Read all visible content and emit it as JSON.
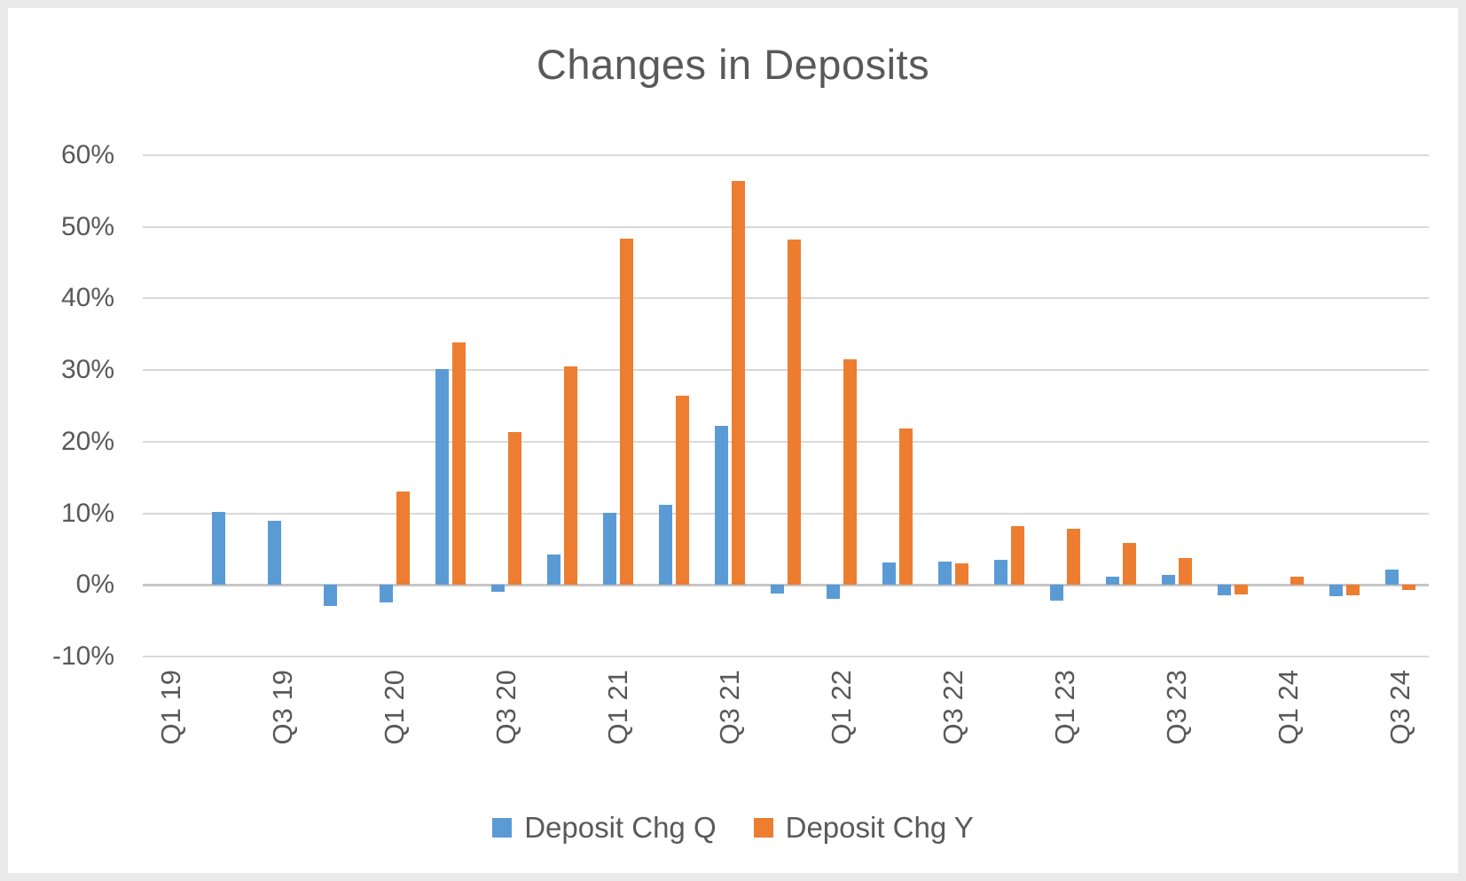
{
  "chart_data": {
    "type": "bar",
    "title": "Changes in Deposits",
    "categories": [
      "Q1 19",
      "Q2 19",
      "Q3 19",
      "Q4 19",
      "Q1 20",
      "Q2 20",
      "Q3 20",
      "Q4 20",
      "Q1 21",
      "Q2 21",
      "Q3 21",
      "Q4 21",
      "Q1 22",
      "Q2 22",
      "Q3 22",
      "Q4 22",
      "Q1 23",
      "Q2 23",
      "Q3 23",
      "Q4 23",
      "Q1 24",
      "Q2 24",
      "Q3 24"
    ],
    "series": [
      {
        "name": "Deposit Chg Q",
        "color": "#5B9BD5",
        "values": [
          null,
          10.2,
          9.0,
          -2.9,
          -2.5,
          30.1,
          -1.0,
          4.2,
          10.1,
          11.2,
          22.2,
          -1.2,
          -1.9,
          3.1,
          3.3,
          3.5,
          -2.2,
          1.2,
          1.4,
          -1.5,
          null,
          -1.6,
          2.1
        ]
      },
      {
        "name": "Deposit Chg Y",
        "color": "#ED7D31",
        "values": [
          null,
          null,
          null,
          null,
          13.1,
          33.8,
          21.3,
          30.5,
          48.3,
          26.4,
          56.4,
          48.2,
          31.5,
          21.9,
          3.0,
          8.2,
          7.9,
          5.9,
          3.7,
          -1.3,
          1.2,
          -1.5,
          -0.7
        ]
      }
    ],
    "y_axis": {
      "min": -10,
      "max": 60,
      "step": 10,
      "unit": "%",
      "tick_labels": [
        "60%",
        "50%",
        "40%",
        "30%",
        "20%",
        "10%",
        "0%",
        "-10%"
      ],
      "grid": true
    },
    "x_axis": {
      "label_every": 2,
      "rotation_deg": -90,
      "shown_tick_labels": [
        "Q1 19",
        "Q3 19",
        "Q1 20",
        "Q3 20",
        "Q1 21",
        "Q3 21",
        "Q1 22",
        "Q3 22",
        "Q1 23",
        "Q3 23",
        "Q1 24",
        "Q3 24"
      ]
    },
    "legend": {
      "position": "bottom",
      "entries": [
        "Deposit Chg Q",
        "Deposit Chg Y"
      ]
    }
  },
  "colors": {
    "series_q": "#5B9BD5",
    "series_y": "#ED7D31",
    "gridline": "#D9D9D9",
    "zero_axis": "#C6C6C6",
    "text": "#595959",
    "background": "#FFFFFF",
    "frame_border": "#E9E9E9"
  }
}
